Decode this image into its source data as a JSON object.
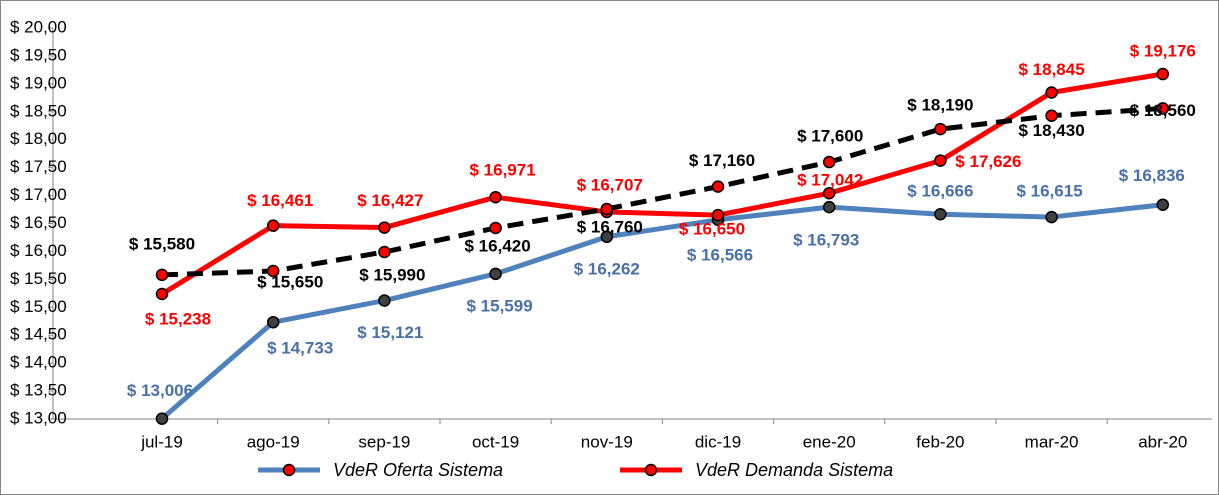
{
  "chart_data": {
    "type": "line",
    "categories": [
      "jul-19",
      "ago-19",
      "sep-19",
      "oct-19",
      "nov-19",
      "dic-19",
      "ene-20",
      "feb-20",
      "mar-20",
      "abr-20"
    ],
    "series": [
      {
        "name": "VdeR Oferta Sistema",
        "color": "#4f81bd",
        "label_color": "#4a70a8",
        "marker_color": "#404040",
        "dashed": false,
        "values": [
          13.006,
          14.733,
          15.121,
          15.599,
          16.262,
          16.566,
          16.793,
          16.666,
          16.615,
          16.836
        ],
        "value_labels": [
          "$ 13,006",
          "$ 14,733",
          "$ 15,121",
          "$ 15,599",
          "$ 16,262",
          "$ 16,566",
          "$ 16,793",
          "$ 16,666",
          "$ 16,615",
          "$ 16,836"
        ]
      },
      {
        "name": "VdeR Demanda Sistema",
        "color": "#ff0000",
        "label_color": "#ff0000",
        "marker_color": "#ff0000",
        "dashed": false,
        "values": [
          15.238,
          16.461,
          16.427,
          16.971,
          16.707,
          16.65,
          17.042,
          17.626,
          18.845,
          19.176
        ],
        "value_labels": [
          "$ 15,238",
          "$ 16,461",
          "$ 16,427",
          "$ 16,971",
          "$ 16,707",
          "$ 16,650",
          "$ 17,042",
          "$ 17,626",
          "$ 18,845",
          "$ 19,176"
        ]
      },
      {
        "color": "#000000",
        "label_color": "#000000",
        "marker_color": "#ff0000",
        "dashed": true,
        "values": [
          15.58,
          15.65,
          15.99,
          16.42,
          16.76,
          17.16,
          17.6,
          18.19,
          18.43,
          18.56
        ],
        "value_labels": [
          "$ 15,580",
          "$ 15,650",
          "$ 15,990",
          "$ 16,420",
          "$ 16,760",
          "$ 17,160",
          "$ 17,600",
          "$ 18,190",
          "$ 18,430",
          "$ 18,560"
        ]
      }
    ],
    "ylim": [
      13,
      20
    ],
    "yticks": [
      {
        "value": 13,
        "label": "$ 13,00"
      },
      {
        "value": 13.5,
        "label": "$ 13,50"
      },
      {
        "value": 14,
        "label": "$ 14,00"
      },
      {
        "value": 14.5,
        "label": "$ 14,50"
      },
      {
        "value": 15,
        "label": "$ 15,00"
      },
      {
        "value": 15.5,
        "label": "$ 15,50"
      },
      {
        "value": 16,
        "label": "$ 16,00"
      },
      {
        "value": 16.5,
        "label": "$ 16,50"
      },
      {
        "value": 17,
        "label": "$ 17,00"
      },
      {
        "value": 17.5,
        "label": "$ 17,50"
      },
      {
        "value": 18,
        "label": "$ 18,00"
      },
      {
        "value": 18.5,
        "label": "$ 18,50"
      },
      {
        "value": 19,
        "label": "$ 19,00"
      },
      {
        "value": 19.5,
        "label": "$ 19,50"
      },
      {
        "value": 20,
        "label": "$ 20,00"
      }
    ],
    "grid": false
  }
}
